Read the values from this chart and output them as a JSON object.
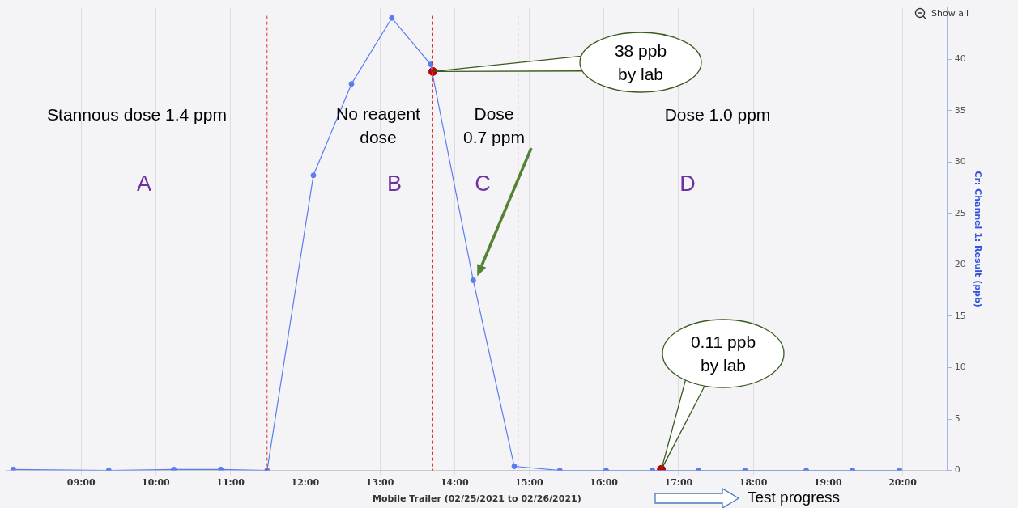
{
  "chart_data": {
    "type": "line",
    "xlabel": "Mobile Trailer (02/25/2021 to 02/26/2021)",
    "ylabel": "Cr: Channel 1: Result (ppb)",
    "xlim": [
      8.0,
      20.6
    ],
    "xticks": [
      {
        "value": 9,
        "label": "09:00"
      },
      {
        "value": 10,
        "label": "10:00"
      },
      {
        "value": 11,
        "label": "11:00"
      },
      {
        "value": 12,
        "label": "12:00"
      },
      {
        "value": 13,
        "label": "13:00"
      },
      {
        "value": 14,
        "label": "14:00"
      },
      {
        "value": 15,
        "label": "15:00"
      },
      {
        "value": 16,
        "label": "16:00"
      },
      {
        "value": 17,
        "label": "17:00"
      },
      {
        "value": 18,
        "label": "18:00"
      },
      {
        "value": 19,
        "label": "19:00"
      },
      {
        "value": 20,
        "label": "20:00"
      }
    ],
    "ylim": [
      0,
      45
    ],
    "yticks": [
      0,
      5,
      10,
      15,
      20,
      25,
      30,
      35,
      40
    ],
    "grid": "x",
    "legend": false,
    "marker": "circle",
    "series": [
      {
        "color": "#5b7cf0",
        "x": [
          8.09,
          9.37,
          10.24,
          10.87,
          11.49,
          12.11,
          12.62,
          13.16,
          13.68,
          14.25,
          14.8,
          15.41,
          16.03,
          16.65,
          17.27,
          17.89,
          18.71,
          19.33,
          19.96
        ],
        "values": [
          0.1,
          0,
          0.1,
          0.1,
          0,
          28.7,
          37.6,
          44,
          39.5,
          18.5,
          0.4,
          0,
          0,
          0,
          0,
          0,
          0,
          0,
          0
        ]
      },
      {
        "type": "scatter",
        "color": "#c00000",
        "x": [
          13.71,
          16.77
        ],
        "values": [
          38.8,
          0.1
        ]
      }
    ],
    "ref_lines": [
      {
        "axis": "x",
        "value": 11.49,
        "color": "#e03030",
        "line_style": "dashed"
      },
      {
        "axis": "x",
        "value": 13.71,
        "color": "#e03030",
        "line_style": "dashed"
      },
      {
        "axis": "x",
        "value": 14.85,
        "color": "#e03030",
        "line_style": "dashed"
      }
    ],
    "annotations": [
      "Stannous dose 1.4 ppm",
      "No reagent\ndose",
      "Dose\n0.7 ppm",
      "Dose 1.0 ppm",
      "A",
      "B",
      "C",
      "D",
      "38 ppb\nby lab",
      "0.11 ppb\nby lab",
      "Test progress",
      "Show all"
    ]
  }
}
